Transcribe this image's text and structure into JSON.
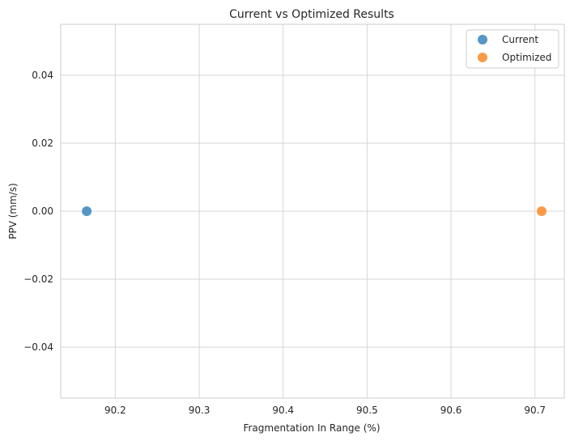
{
  "chart_data": {
    "type": "scatter",
    "title": "Current vs Optimized Results",
    "xlabel": "Fragmentation In Range (%)",
    "ylabel": "PPV (mm/s)",
    "xlim": [
      90.135,
      90.735
    ],
    "ylim": [
      -0.055,
      0.055
    ],
    "xticks": [
      90.2,
      90.3,
      90.4,
      90.5,
      90.6,
      90.7
    ],
    "xtick_labels": [
      "90.2",
      "90.3",
      "90.4",
      "90.5",
      "90.6",
      "90.7"
    ],
    "yticks": [
      -0.04,
      -0.02,
      0.0,
      0.02,
      0.04
    ],
    "ytick_labels": [
      "−0.04",
      "−0.02",
      "0.00",
      "0.02",
      "0.04"
    ],
    "grid": true,
    "legend_position": "top-right",
    "series": [
      {
        "name": "Current",
        "color": "#4c91c3",
        "points": [
          {
            "x": 90.166,
            "y": 0.0
          }
        ]
      },
      {
        "name": "Optimized",
        "color": "#f9963e",
        "points": [
          {
            "x": 90.708,
            "y": 0.0
          }
        ]
      }
    ]
  }
}
